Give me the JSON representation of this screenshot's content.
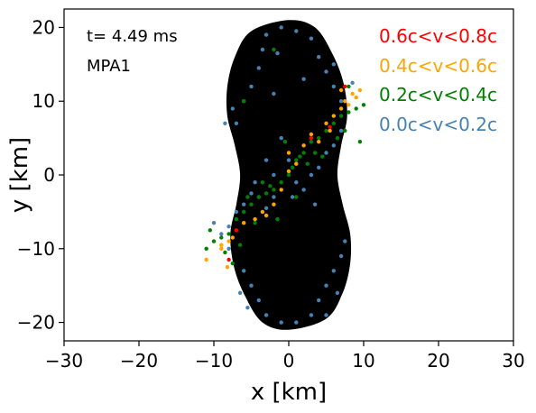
{
  "chart_data": {
    "type": "scatter",
    "title": "",
    "xlabel": "x [km]",
    "ylabel": "y [km]",
    "xlim": [
      -30,
      30
    ],
    "ylim": [
      -22.5,
      22.5
    ],
    "xticks": [
      -30,
      -20,
      -10,
      0,
      10,
      20,
      30
    ],
    "yticks": [
      -20,
      -10,
      0,
      10,
      20
    ],
    "xtick_labels": [
      "−30",
      "−20",
      "−10",
      "0",
      "10",
      "20",
      "30"
    ],
    "ytick_labels": [
      "−20",
      "−10",
      "0",
      "10",
      "20"
    ],
    "grid": false,
    "legend_position": "top-right",
    "annotations": [
      "t= 4.49 ms",
      "MPA1"
    ],
    "matter_color": "#000000",
    "series": [
      {
        "name": "0.6c<v<0.8c",
        "color": "#ff0000",
        "points": [
          [
            -8,
            -11.5
          ],
          [
            -7,
            -7.5
          ],
          [
            3,
            5
          ],
          [
            5.5,
            6.5
          ],
          [
            7.5,
            12
          ]
        ]
      },
      {
        "name": "0.4c<v<0.6c",
        "color": "#ffa500",
        "points": [
          [
            -11,
            -11.5
          ],
          [
            -9,
            -10
          ],
          [
            -8,
            -9
          ],
          [
            -7.5,
            -8.5
          ],
          [
            -8.2,
            -12.5
          ],
          [
            -6,
            -6.5
          ],
          [
            -4.5,
            -6
          ],
          [
            -3.5,
            -5
          ],
          [
            -3,
            -5.5
          ],
          [
            -2,
            -4
          ],
          [
            -1,
            -2
          ],
          [
            0,
            0.5
          ],
          [
            1,
            1.5
          ],
          [
            0,
            3
          ],
          [
            2,
            4
          ],
          [
            3,
            5.5
          ],
          [
            4,
            4.5
          ],
          [
            5,
            7
          ],
          [
            5.5,
            6
          ],
          [
            6,
            8
          ],
          [
            7,
            9
          ],
          [
            7.5,
            10
          ],
          [
            8,
            9.5
          ],
          [
            8.5,
            11
          ],
          [
            9,
            10.5
          ],
          [
            7,
            11.5
          ],
          [
            9.5,
            11.5
          ],
          [
            -9,
            -9.5
          ]
        ]
      },
      {
        "name": "0.2c<v<0.4c",
        "color": "#008000",
        "points": [
          [
            -11,
            -10
          ],
          [
            -10,
            -9
          ],
          [
            -10.5,
            -7.5
          ],
          [
            -9,
            -8.5
          ],
          [
            -8,
            -8
          ],
          [
            -7,
            -6
          ],
          [
            -6,
            -5
          ],
          [
            -5,
            -4
          ],
          [
            -4,
            -3
          ],
          [
            -3,
            -2.5
          ],
          [
            -2,
            -2
          ],
          [
            -1,
            -1
          ],
          [
            0,
            0
          ],
          [
            1,
            2
          ],
          [
            2,
            3
          ],
          [
            3,
            4.5
          ],
          [
            4,
            5
          ],
          [
            5,
            6
          ],
          [
            6,
            7
          ],
          [
            7,
            8
          ],
          [
            8,
            8.5
          ],
          [
            9,
            9
          ],
          [
            10,
            9.5
          ],
          [
            9.5,
            4.5
          ],
          [
            -5.5,
            -3
          ],
          [
            -3.5,
            -1
          ],
          [
            -1.5,
            -6
          ],
          [
            1,
            -3
          ],
          [
            2.5,
            1.5
          ],
          [
            4.5,
            2.5
          ],
          [
            -4.5,
            -6.5
          ],
          [
            -2.5,
            -1.5
          ],
          [
            0.5,
            1
          ],
          [
            1.5,
            2.5
          ],
          [
            6.5,
            5
          ],
          [
            7.5,
            6
          ],
          [
            3.5,
            3
          ],
          [
            -6.5,
            -9.5
          ],
          [
            -8.5,
            -10.5
          ],
          [
            -2,
            17
          ],
          [
            -6,
            10
          ],
          [
            -7.5,
            -12
          ],
          [
            8,
            12
          ],
          [
            -0.5,
            4.5
          ]
        ]
      },
      {
        "name": "0.0c<v<0.2c",
        "color": "#4682b4",
        "points": [
          [
            -3,
            19
          ],
          [
            -1,
            20
          ],
          [
            1,
            19.5
          ],
          [
            3,
            18.5
          ],
          [
            4,
            16
          ],
          [
            5,
            14
          ],
          [
            6,
            12
          ],
          [
            7,
            10
          ],
          [
            -3.5,
            17
          ],
          [
            -4,
            14.5
          ],
          [
            -5,
            12
          ],
          [
            -6,
            10
          ],
          [
            -7,
            7
          ],
          [
            -8.5,
            7
          ],
          [
            -7.5,
            9
          ],
          [
            -1,
            5
          ],
          [
            0,
            2
          ],
          [
            1,
            -1
          ],
          [
            2,
            -2
          ],
          [
            3,
            0
          ],
          [
            4,
            1
          ],
          [
            5,
            3
          ],
          [
            6,
            4
          ],
          [
            -2,
            -3
          ],
          [
            -3,
            -4.5
          ],
          [
            -4,
            -3
          ],
          [
            -5,
            -2.5
          ],
          [
            -6,
            -4
          ],
          [
            -7,
            -5
          ],
          [
            -8,
            -7
          ],
          [
            -9,
            -8
          ],
          [
            -10,
            -6.5
          ],
          [
            -8,
            -10
          ],
          [
            -6,
            -13
          ],
          [
            -5,
            -15
          ],
          [
            -4,
            -17
          ],
          [
            -3,
            -19
          ],
          [
            -1,
            -20
          ],
          [
            1,
            -20
          ],
          [
            3,
            -19
          ],
          [
            4,
            -17
          ],
          [
            5,
            -15
          ],
          [
            6,
            -13
          ],
          [
            7,
            -11
          ],
          [
            7.5,
            -9
          ],
          [
            2,
            13
          ],
          [
            -3,
            2
          ],
          [
            -4.5,
            -1
          ],
          [
            -2,
            0
          ],
          [
            0.5,
            -3
          ],
          [
            3.5,
            -4
          ],
          [
            -1.5,
            16.5
          ],
          [
            6,
            15
          ],
          [
            -6.5,
            -16
          ],
          [
            -5.5,
            -18
          ],
          [
            5,
            -19
          ],
          [
            6.5,
            -16
          ],
          [
            -2,
            11
          ],
          [
            7,
            6
          ],
          [
            8.5,
            12.5
          ]
        ]
      }
    ]
  }
}
